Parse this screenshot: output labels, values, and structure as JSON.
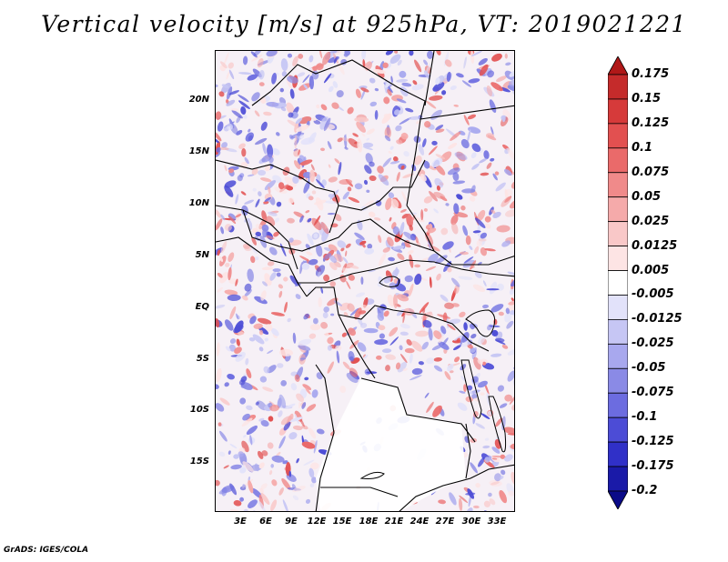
{
  "title": "Vertical velocity [m/s] at 925hPa, VT: 2019021221",
  "credit": "GrADS: IGES/COLA",
  "latitude_labels": [
    "20N",
    "15N",
    "10N",
    "5N",
    "EQ",
    "5S",
    "10S",
    "15S"
  ],
  "longitude_labels": [
    "3E",
    "6E",
    "9E",
    "12E",
    "15E",
    "18E",
    "21E",
    "24E",
    "27E",
    "30E",
    "33E"
  ],
  "colorbar": {
    "levels": [
      "0.175",
      "0.15",
      "0.125",
      "0.1",
      "0.075",
      "0.05",
      "0.025",
      "0.0125",
      "0.005",
      "-0.005",
      "-0.0125",
      "-0.025",
      "-0.05",
      "-0.075",
      "-0.1",
      "-0.125",
      "-0.175",
      "-0.2"
    ],
    "colors": [
      "#b01818",
      "#c52b2b",
      "#d63a3a",
      "#e25050",
      "#ea6a6a",
      "#f08a8a",
      "#f5aaaa",
      "#f9c8c8",
      "#fde4e4",
      "#ffffff",
      "#e2e2fa",
      "#c6c6f4",
      "#a8a8ee",
      "#8a8ae6",
      "#6c6ce0",
      "#4c4cd6",
      "#3030c8",
      "#1a1aa8",
      "#0a0a88"
    ]
  }
}
